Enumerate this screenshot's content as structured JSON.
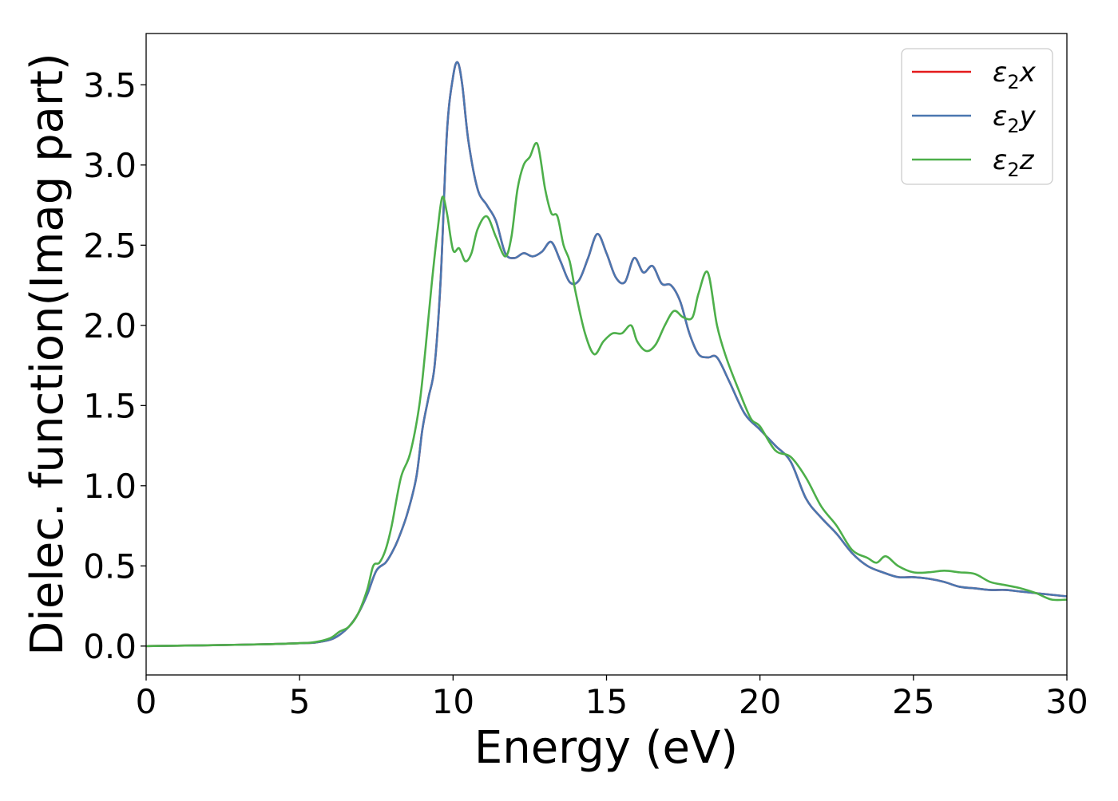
{
  "chart_data": {
    "type": "line",
    "title": "",
    "xlabel": "Energy (eV)",
    "ylabel": "Dielec. function(Imag part)",
    "xlim": [
      0,
      30
    ],
    "ylim": [
      -0.18,
      3.82
    ],
    "xticks": [
      0,
      5,
      10,
      15,
      20,
      25,
      30
    ],
    "xtick_labels": [
      "0",
      "5",
      "10",
      "15",
      "20",
      "25",
      "30"
    ],
    "yticks": [
      0.0,
      0.5,
      1.0,
      1.5,
      2.0,
      2.5,
      3.0,
      3.5
    ],
    "ytick_labels": [
      "0.0",
      "0.5",
      "1.0",
      "1.5",
      "2.0",
      "2.5",
      "3.0",
      "3.5"
    ],
    "grid": false,
    "legend": {
      "position": "top-right"
    },
    "series": [
      {
        "name": "ε₂x",
        "legend_base": "ε",
        "legend_sub": "2",
        "legend_axis": "x",
        "color": "#e41a1c",
        "x": [
          0,
          2,
          4,
          5,
          5.5,
          6,
          6.3,
          6.6,
          6.9,
          7.2,
          7.5,
          7.8,
          8.0,
          8.2,
          8.5,
          8.8,
          9.0,
          9.2,
          9.4,
          9.6,
          9.8,
          10.0,
          10.15,
          10.3,
          10.5,
          10.8,
          11.1,
          11.4,
          11.7,
          12.0,
          12.3,
          12.6,
          12.9,
          13.2,
          13.5,
          13.8,
          14.1,
          14.4,
          14.7,
          15.0,
          15.3,
          15.6,
          15.9,
          16.2,
          16.5,
          16.8,
          17.1,
          17.4,
          17.7,
          18.0,
          18.3,
          18.6,
          19.0,
          19.5,
          20.0,
          20.5,
          21.0,
          21.5,
          22.0,
          22.5,
          23.0,
          23.5,
          24.0,
          24.5,
          25.0,
          25.5,
          26.0,
          26.5,
          27.0,
          27.5,
          28.0,
          28.5,
          29.0,
          29.5,
          30.0
        ],
        "y": [
          0.0,
          0.005,
          0.012,
          0.018,
          0.022,
          0.04,
          0.07,
          0.12,
          0.2,
          0.32,
          0.47,
          0.52,
          0.58,
          0.66,
          0.82,
          1.05,
          1.35,
          1.55,
          1.75,
          2.3,
          3.2,
          3.55,
          3.64,
          3.5,
          3.15,
          2.85,
          2.75,
          2.65,
          2.45,
          2.42,
          2.45,
          2.43,
          2.46,
          2.52,
          2.4,
          2.27,
          2.28,
          2.42,
          2.57,
          2.45,
          2.3,
          2.27,
          2.42,
          2.33,
          2.37,
          2.26,
          2.25,
          2.15,
          1.95,
          1.82,
          1.8,
          1.8,
          1.65,
          1.45,
          1.35,
          1.25,
          1.15,
          0.92,
          0.8,
          0.7,
          0.58,
          0.5,
          0.46,
          0.43,
          0.43,
          0.42,
          0.4,
          0.37,
          0.36,
          0.35,
          0.35,
          0.34,
          0.33,
          0.32,
          0.31
        ]
      },
      {
        "name": "ε₂y",
        "legend_base": "ε",
        "legend_sub": "2",
        "legend_axis": "y",
        "color": "#4a77b0",
        "x": [
          0,
          2,
          4,
          5,
          5.5,
          6,
          6.3,
          6.6,
          6.9,
          7.2,
          7.5,
          7.8,
          8.0,
          8.2,
          8.5,
          8.8,
          9.0,
          9.2,
          9.4,
          9.6,
          9.8,
          10.0,
          10.15,
          10.3,
          10.5,
          10.8,
          11.1,
          11.4,
          11.7,
          12.0,
          12.3,
          12.6,
          12.9,
          13.2,
          13.5,
          13.8,
          14.1,
          14.4,
          14.7,
          15.0,
          15.3,
          15.6,
          15.9,
          16.2,
          16.5,
          16.8,
          17.1,
          17.4,
          17.7,
          18.0,
          18.3,
          18.6,
          19.0,
          19.5,
          20.0,
          20.5,
          21.0,
          21.5,
          22.0,
          22.5,
          23.0,
          23.5,
          24.0,
          24.5,
          25.0,
          25.5,
          26.0,
          26.5,
          27.0,
          27.5,
          28.0,
          28.5,
          29.0,
          29.5,
          30.0
        ],
        "y": [
          0.0,
          0.005,
          0.012,
          0.018,
          0.022,
          0.04,
          0.07,
          0.12,
          0.2,
          0.32,
          0.47,
          0.52,
          0.58,
          0.66,
          0.82,
          1.05,
          1.35,
          1.55,
          1.75,
          2.3,
          3.2,
          3.55,
          3.64,
          3.5,
          3.15,
          2.85,
          2.75,
          2.65,
          2.45,
          2.42,
          2.45,
          2.43,
          2.46,
          2.52,
          2.4,
          2.27,
          2.28,
          2.42,
          2.57,
          2.45,
          2.3,
          2.27,
          2.42,
          2.33,
          2.37,
          2.26,
          2.25,
          2.15,
          1.95,
          1.82,
          1.8,
          1.8,
          1.65,
          1.45,
          1.35,
          1.25,
          1.15,
          0.92,
          0.8,
          0.7,
          0.58,
          0.5,
          0.46,
          0.43,
          0.43,
          0.42,
          0.4,
          0.37,
          0.36,
          0.35,
          0.35,
          0.34,
          0.33,
          0.32,
          0.31
        ]
      },
      {
        "name": "ε₂z",
        "legend_base": "ε",
        "legend_sub": "2",
        "legend_axis": "z",
        "color": "#4daf4a",
        "x": [
          0,
          2,
          4,
          5,
          5.5,
          6,
          6.3,
          6.6,
          6.9,
          7.2,
          7.4,
          7.6,
          7.8,
          8.0,
          8.3,
          8.6,
          8.9,
          9.1,
          9.3,
          9.5,
          9.65,
          9.8,
          10.0,
          10.2,
          10.4,
          10.6,
          10.8,
          11.1,
          11.4,
          11.7,
          11.9,
          12.1,
          12.3,
          12.5,
          12.75,
          13.0,
          13.2,
          13.4,
          13.6,
          13.8,
          14.0,
          14.3,
          14.6,
          14.9,
          15.2,
          15.5,
          15.8,
          16.0,
          16.3,
          16.6,
          16.9,
          17.2,
          17.5,
          17.8,
          18.0,
          18.3,
          18.6,
          18.9,
          19.3,
          19.7,
          20.0,
          20.5,
          21.0,
          21.5,
          22.0,
          22.5,
          23.0,
          23.5,
          23.8,
          24.1,
          24.5,
          25.0,
          25.5,
          26.0,
          26.5,
          27.0,
          27.5,
          28.0,
          28.5,
          29.0,
          29.5,
          30.0
        ],
        "y": [
          0.0,
          0.005,
          0.012,
          0.018,
          0.025,
          0.05,
          0.09,
          0.12,
          0.2,
          0.35,
          0.5,
          0.52,
          0.6,
          0.75,
          1.05,
          1.2,
          1.5,
          1.85,
          2.25,
          2.6,
          2.8,
          2.7,
          2.47,
          2.48,
          2.4,
          2.45,
          2.6,
          2.68,
          2.55,
          2.43,
          2.55,
          2.85,
          3.0,
          3.05,
          3.13,
          2.85,
          2.7,
          2.68,
          2.5,
          2.4,
          2.2,
          1.95,
          1.82,
          1.9,
          1.95,
          1.95,
          2.0,
          1.9,
          1.84,
          1.88,
          2.0,
          2.09,
          2.05,
          2.05,
          2.2,
          2.33,
          2.0,
          1.8,
          1.6,
          1.42,
          1.37,
          1.22,
          1.18,
          1.05,
          0.87,
          0.75,
          0.6,
          0.55,
          0.52,
          0.56,
          0.5,
          0.46,
          0.46,
          0.47,
          0.46,
          0.45,
          0.4,
          0.38,
          0.36,
          0.33,
          0.29,
          0.29
        ]
      }
    ]
  }
}
